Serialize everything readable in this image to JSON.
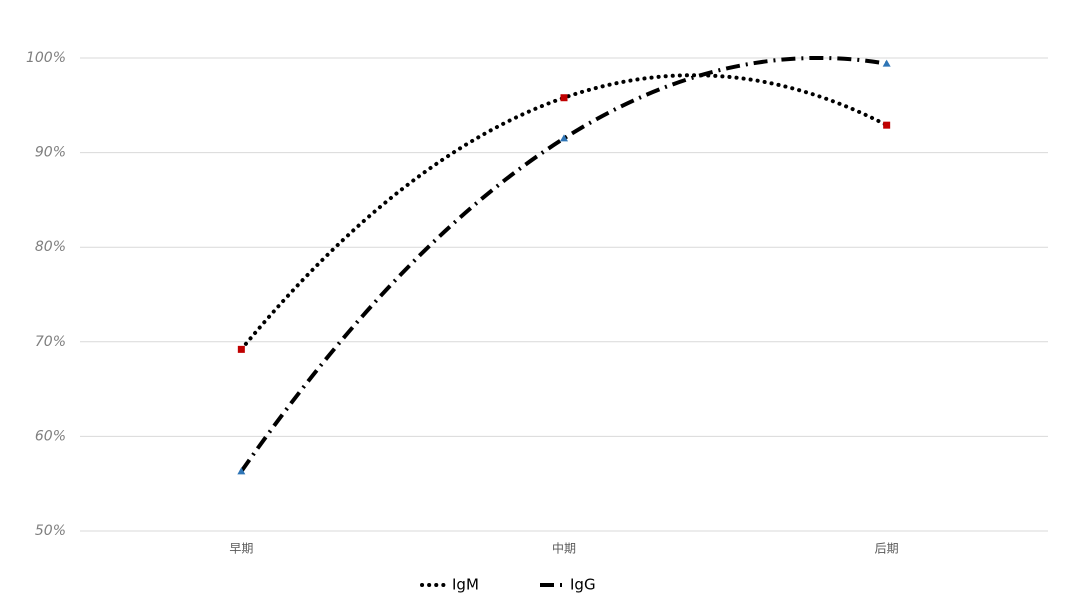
{
  "chart_data": {
    "type": "line",
    "categories": [
      "早期",
      "中期",
      "后期"
    ],
    "series": [
      {
        "name": "IgM",
        "color": "#000000",
        "marker_color": "#c00000",
        "marker": "square",
        "dash": "dotted",
        "values": [
          69.2,
          95.8,
          92.9
        ]
      },
      {
        "name": "IgG",
        "color": "#000000",
        "marker_color": "#2e75b6",
        "marker": "triangle",
        "dash": "dashdot",
        "values": [
          56.3,
          91.5,
          99.4
        ]
      }
    ],
    "ylim": [
      50,
      100
    ],
    "yticks": [
      {
        "value": 50,
        "label": "50%"
      },
      {
        "value": 60,
        "label": "60%"
      },
      {
        "value": 70,
        "label": "70%"
      },
      {
        "value": 80,
        "label": "80%"
      },
      {
        "value": 90,
        "label": "90%"
      },
      {
        "value": 100,
        "label": "100%"
      }
    ],
    "grid": true,
    "legend": "bottom"
  }
}
